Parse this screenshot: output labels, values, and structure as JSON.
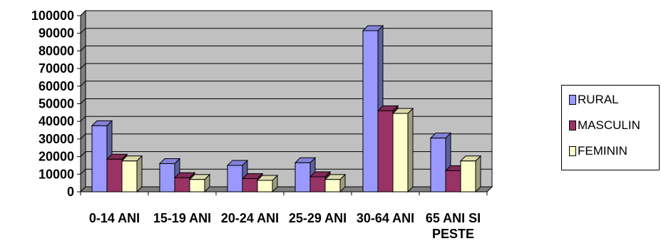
{
  "chart_data": {
    "type": "bar",
    "categories": [
      "0-14 ANI",
      "15-19 ANI",
      "20-24 ANI",
      "25-29 ANI",
      "30-64 ANI",
      "65 ANI SI PESTE"
    ],
    "series": [
      {
        "name": "RURAL",
        "values": [
          37500,
          16000,
          15000,
          16500,
          91500,
          30500
        ]
      },
      {
        "name": "MASCULIN",
        "values": [
          18500,
          8000,
          7500,
          8500,
          46000,
          12000
        ]
      },
      {
        "name": "FEMININ",
        "values": [
          17500,
          7000,
          6500,
          7000,
          44500,
          17500
        ]
      }
    ],
    "yticks": [
      "0",
      "10000",
      "20000",
      "30000",
      "40000",
      "50000",
      "60000",
      "70000",
      "80000",
      "90000",
      "100000"
    ],
    "ylim": [
      0,
      100000
    ],
    "grid": true,
    "legend_position": "right",
    "colors": {
      "RURAL": "#9999ff",
      "MASCULIN": "#993366",
      "FEMININ": "#ffffcc",
      "wall": "#c0c0c0"
    }
  }
}
